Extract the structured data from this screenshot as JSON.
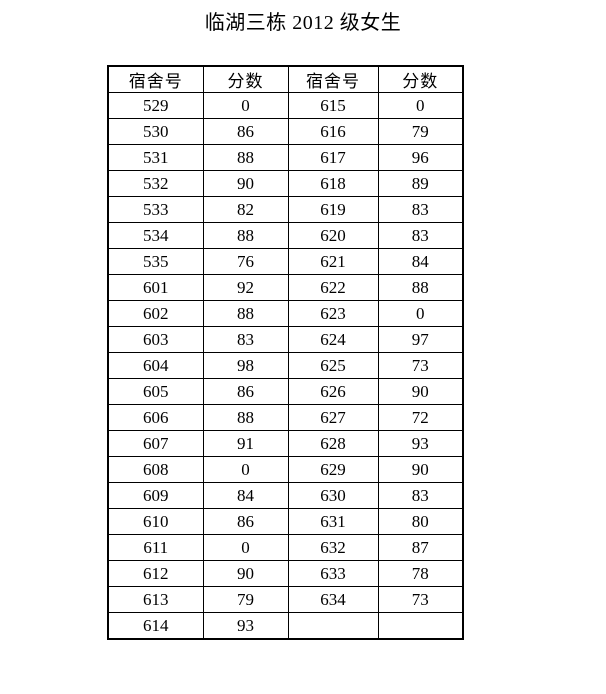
{
  "page": {
    "title": "临湖三栋 2012 级女生"
  },
  "table": {
    "headers": [
      "宿舍号",
      "分数",
      "宿舍号",
      "分数"
    ],
    "rows": [
      [
        "529",
        "0",
        "615",
        "0"
      ],
      [
        "530",
        "86",
        "616",
        "79"
      ],
      [
        "531",
        "88",
        "617",
        "96"
      ],
      [
        "532",
        "90",
        "618",
        "89"
      ],
      [
        "533",
        "82",
        "619",
        "83"
      ],
      [
        "534",
        "88",
        "620",
        "83"
      ],
      [
        "535",
        "76",
        "621",
        "84"
      ],
      [
        "601",
        "92",
        "622",
        "88"
      ],
      [
        "602",
        "88",
        "623",
        "0"
      ],
      [
        "603",
        "83",
        "624",
        "97"
      ],
      [
        "604",
        "98",
        "625",
        "73"
      ],
      [
        "605",
        "86",
        "626",
        "90"
      ],
      [
        "606",
        "88",
        "627",
        "72"
      ],
      [
        "607",
        "91",
        "628",
        "93"
      ],
      [
        "608",
        "0",
        "629",
        "90"
      ],
      [
        "609",
        "84",
        "630",
        "83"
      ],
      [
        "610",
        "86",
        "631",
        "80"
      ],
      [
        "611",
        "0",
        "632",
        "87"
      ],
      [
        "612",
        "90",
        "633",
        "78"
      ],
      [
        "613",
        "79",
        "634",
        "73"
      ],
      [
        "614",
        "93",
        "",
        ""
      ]
    ],
    "colors": {
      "border": "#000000",
      "text": "#000000",
      "background": "#ffffff"
    }
  }
}
